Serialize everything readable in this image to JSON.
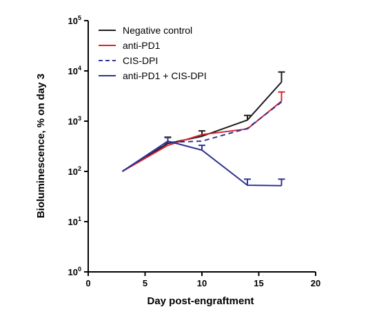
{
  "chart_data": {
    "type": "line",
    "title": "",
    "xlabel": "Day post-engraftment",
    "ylabel": "Bioluminescence, % on day 3",
    "xlim": [
      0,
      20
    ],
    "ylim": [
      1,
      100000
    ],
    "yscale": "log",
    "x_ticks": [
      0,
      5,
      10,
      15,
      20
    ],
    "y_ticks": [
      {
        "base": "10",
        "exp": "0",
        "value": 1
      },
      {
        "base": "10",
        "exp": "1",
        "value": 10
      },
      {
        "base": "10",
        "exp": "2",
        "value": 100
      },
      {
        "base": "10",
        "exp": "3",
        "value": 1000
      },
      {
        "base": "10",
        "exp": "4",
        "value": 10000
      },
      {
        "base": "10",
        "exp": "5",
        "value": 100000
      }
    ],
    "grid": false,
    "legend_position": "top-left",
    "series": [
      {
        "name": "Negative control",
        "color": "#1a1a1a",
        "dash": "solid",
        "points": [
          {
            "x": 3,
            "y": 100
          },
          {
            "x": 7,
            "y": 360,
            "err": 480
          },
          {
            "x": 10,
            "y": 500,
            "err": 640
          },
          {
            "x": 14,
            "y": 1050,
            "err": 1300
          },
          {
            "x": 17,
            "y": 6000,
            "err": 9500
          }
        ]
      },
      {
        "name": "anti-PD1",
        "color": "#d7232f",
        "dash": "solid",
        "points": [
          {
            "x": 3,
            "y": 100
          },
          {
            "x": 7,
            "y": 330
          },
          {
            "x": 10,
            "y": 540
          },
          {
            "x": 14,
            "y": 700
          },
          {
            "x": 17,
            "y": 2500,
            "err": 3800
          }
        ]
      },
      {
        "name": "CIS-DPI",
        "color": "#2e3192",
        "dash": "dashed",
        "points": [
          {
            "x": 3,
            "y": 100
          },
          {
            "x": 7,
            "y": 380
          },
          {
            "x": 10,
            "y": 400
          },
          {
            "x": 14,
            "y": 720
          },
          {
            "x": 17,
            "y": 2400
          }
        ]
      },
      {
        "name": "anti-PD1 + CIS-DPI",
        "color": "#2e3192",
        "dash": "solid",
        "points": [
          {
            "x": 3,
            "y": 100
          },
          {
            "x": 7,
            "y": 400,
            "err": 470
          },
          {
            "x": 10,
            "y": 265,
            "err": 330
          },
          {
            "x": 14,
            "y": 53,
            "err": 70
          },
          {
            "x": 17,
            "y": 52,
            "err": 70
          }
        ]
      }
    ]
  }
}
